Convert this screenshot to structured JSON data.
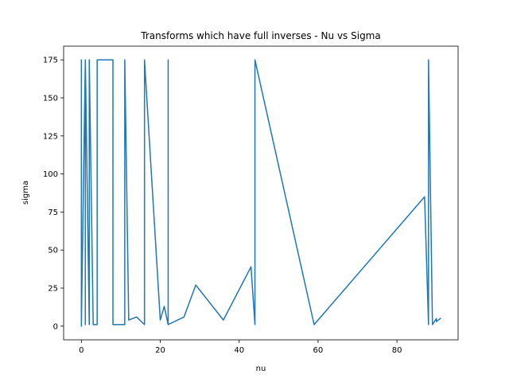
{
  "chart_data": {
    "type": "line",
    "title": "Transforms which have full inverses - Nu vs Sigma",
    "xlabel": "nu",
    "ylabel": "sigma",
    "xlim": [
      -4.5,
      95.5
    ],
    "ylim": [
      -9,
      184
    ],
    "xticks": [
      0,
      20,
      40,
      60,
      80
    ],
    "yticks": [
      0,
      25,
      50,
      75,
      100,
      125,
      150,
      175
    ],
    "grid": false,
    "color": "#1f77b4",
    "series": [
      {
        "name": "",
        "x": [
          0,
          0,
          0,
          1,
          1,
          1,
          2,
          2,
          2,
          3,
          4,
          4,
          8,
          8,
          11,
          11,
          12,
          14,
          16,
          16,
          20,
          21,
          22,
          22,
          22,
          26,
          29,
          36,
          43,
          44,
          44,
          44,
          59,
          60,
          87,
          88,
          88,
          89,
          90,
          90,
          91
        ],
        "y": [
          0,
          175,
          1,
          175,
          1,
          175,
          1,
          1,
          175,
          1,
          1,
          175,
          175,
          1,
          1,
          175,
          4,
          6,
          1,
          175,
          4,
          13,
          1,
          175,
          1,
          6,
          27,
          4,
          39,
          1,
          175,
          175,
          1,
          4,
          85,
          1,
          175,
          1,
          5,
          3,
          5
        ]
      }
    ]
  }
}
